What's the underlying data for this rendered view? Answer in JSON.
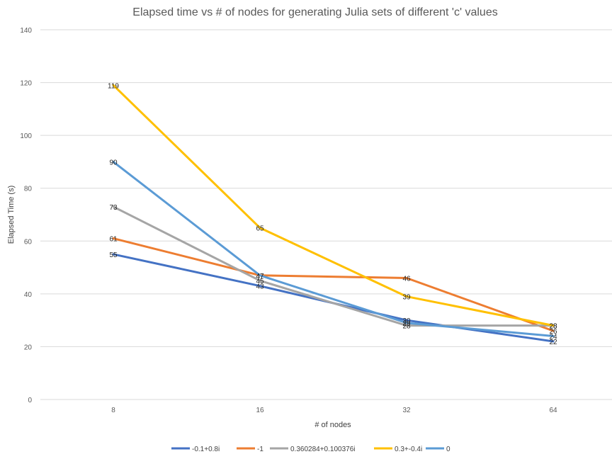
{
  "chart_data": {
    "type": "line",
    "title": "Elapsed time vs # of nodes for generating Julia sets of different 'c' values",
    "xlabel": "# of nodes",
    "ylabel": "Elapsed Time (s)",
    "categories": [
      "8",
      "16",
      "32",
      "64"
    ],
    "ylim": [
      0,
      140
    ],
    "yticks": [
      0,
      20,
      40,
      60,
      80,
      100,
      120,
      140
    ],
    "grid": true,
    "legend_position": "bottom",
    "series": [
      {
        "name": "-0.1+0.8i",
        "color": "#4472c4",
        "values": [
          55,
          43,
          30,
          22
        ]
      },
      {
        "name": "-1",
        "color": "#ed7d31",
        "values": [
          61,
          47,
          46,
          26
        ]
      },
      {
        "name": "0.360284+0.100376i",
        "color": "#a5a5a5",
        "values": [
          73,
          45,
          28,
          28
        ]
      },
      {
        "name": "0.3+-0.4i",
        "color": "#ffc000",
        "values": [
          119,
          65,
          39,
          28
        ]
      },
      {
        "name": "0",
        "color": "#5b9bd5",
        "values": [
          90,
          47,
          29,
          24
        ]
      }
    ]
  }
}
